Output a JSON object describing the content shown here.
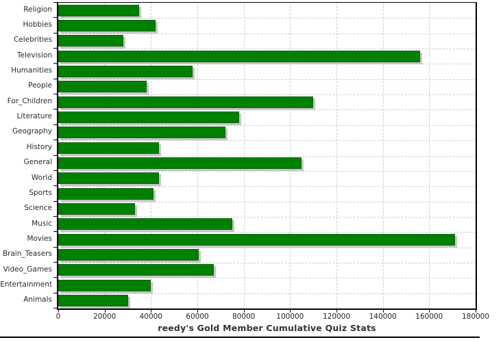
{
  "chart_data": {
    "type": "bar",
    "orientation": "horizontal",
    "title": "reedy's Gold Member Cumulative Quiz Stats",
    "categories": [
      "Religion",
      "Hobbies",
      "Celebrities",
      "Television",
      "Humanities",
      "People",
      "For_Children",
      "Literature",
      "Geography",
      "History",
      "General",
      "World",
      "Sports",
      "Science",
      "Music",
      "Movies",
      "Brain_Teasers",
      "Video_Games",
      "Entertainment",
      "Animals"
    ],
    "values": [
      35000,
      42000,
      28000,
      156000,
      58000,
      38000,
      110000,
      78000,
      72000,
      43500,
      105000,
      43500,
      41000,
      33000,
      75000,
      171000,
      60500,
      67000,
      40000,
      30000
    ],
    "xlim": [
      0,
      180000
    ],
    "xticks": [
      0,
      20000,
      40000,
      60000,
      80000,
      100000,
      120000,
      140000,
      160000,
      180000
    ],
    "xtick_labels": [
      "0",
      "20000",
      "40000",
      "60000",
      "80000",
      "100000",
      "120000",
      "140000",
      "160000",
      "180000"
    ],
    "grid": "dashed",
    "legend_position": "none",
    "bar_color": "#008000",
    "bar_shadow_color": "#c6c6c6",
    "gridline_color": "#c9cdd1",
    "axis_color": "#000000",
    "title_color": "#333333"
  }
}
